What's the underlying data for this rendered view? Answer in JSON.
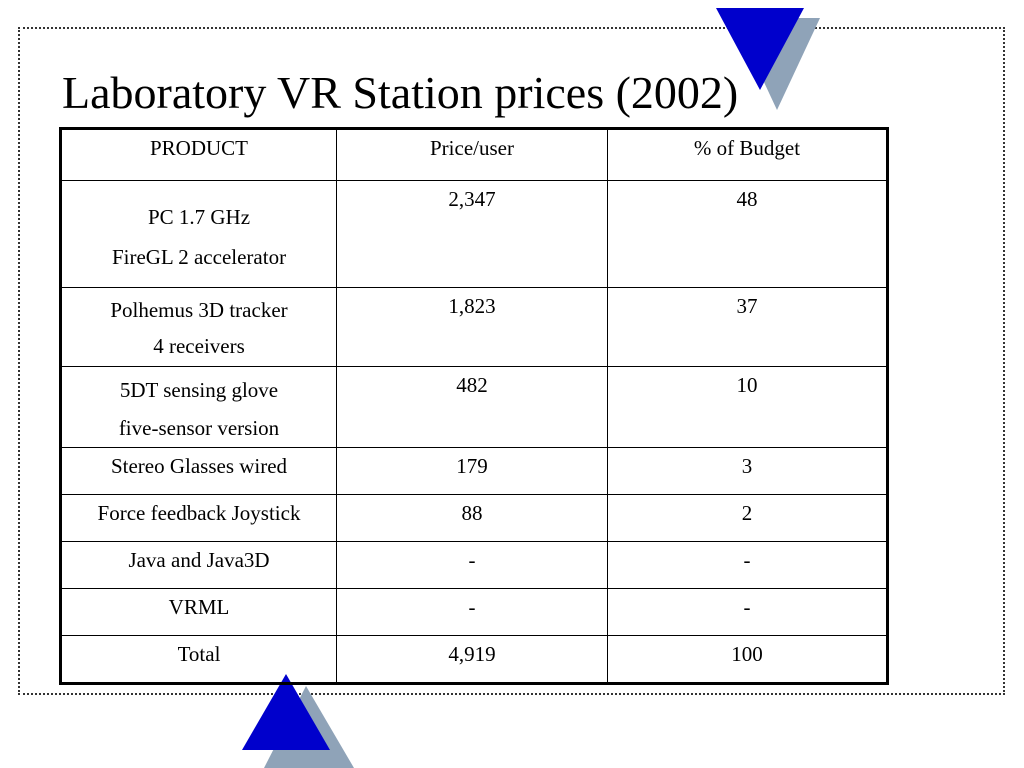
{
  "slide": {
    "title": "Laboratory VR Station prices (2002)"
  },
  "table": {
    "headers": [
      "PRODUCT",
      "Price/user",
      "% of Budget"
    ],
    "rows": [
      {
        "product": [
          "PC 1.7 GHz",
          "FireGL 2 accelerator"
        ],
        "price": "2,347",
        "budget": "48"
      },
      {
        "product": [
          "Polhemus 3D tracker",
          "4 receivers"
        ],
        "price": "1,823",
        "budget": "37"
      },
      {
        "product": [
          "5DT sensing glove",
          "five-sensor version"
        ],
        "price": "482",
        "budget": "10"
      },
      {
        "product": [
          "Stereo Glasses wired"
        ],
        "price": "179",
        "budget": "3"
      },
      {
        "product": [
          "Force feedback Joystick"
        ],
        "price": "88",
        "budget": "2"
      },
      {
        "product": [
          "Java and Java3D"
        ],
        "price": "-",
        "budget": "-"
      },
      {
        "product": [
          "VRML"
        ],
        "price": "-",
        "budget": "-"
      },
      {
        "product": [
          "Total"
        ],
        "price": "4,919",
        "budget": "100"
      }
    ]
  },
  "colors": {
    "triangle_fill": "#0000cc",
    "triangle_shadow": "#8fa3b8"
  }
}
